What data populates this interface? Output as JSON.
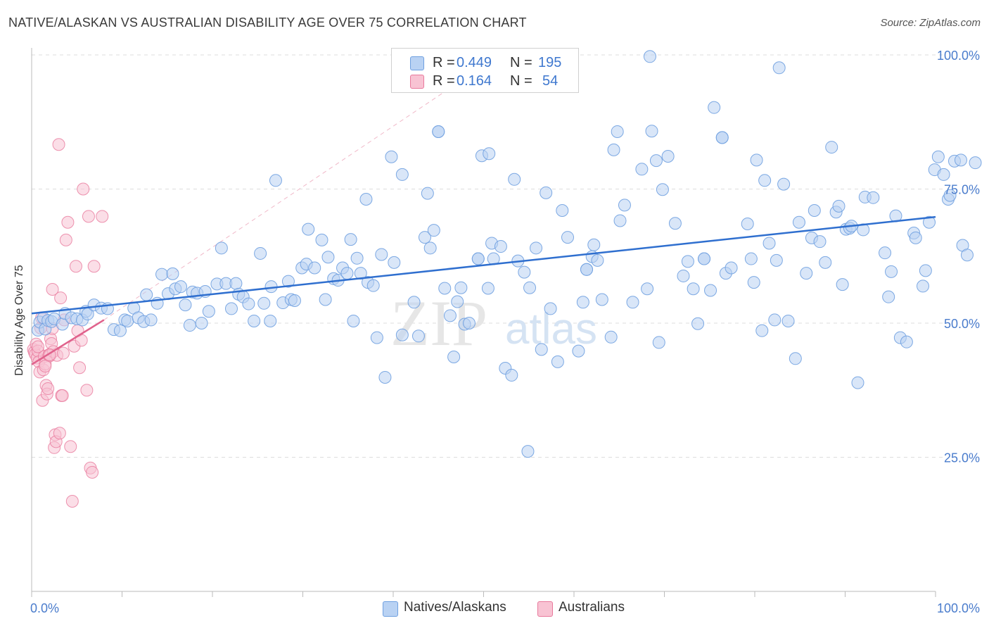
{
  "header": {
    "title": "NATIVE/ALASKAN VS AUSTRALIAN DISABILITY AGE OVER 75 CORRELATION CHART",
    "source": "Source: ZipAtlas.com"
  },
  "legend_box": {
    "rows": [
      {
        "r_label": "R =",
        "r_value": "0.449",
        "n_label": "N =",
        "n_value": "195"
      },
      {
        "r_label": "R =",
        "r_value": "0.164",
        "n_label": "N =",
        "n_value": "54"
      }
    ]
  },
  "bottom_legend": {
    "items": [
      "Natives/Alaskans",
      "Australians"
    ]
  },
  "watermark": {
    "zip": "ZIP",
    "atlas": "atlas"
  },
  "colors": {
    "blue": "#6fa0e0",
    "blue_fill": "#b9d2f3",
    "blue_line": "#2f6fcf",
    "pink": "#e8799c",
    "pink_fill": "#f8c3d3",
    "pink_line": "#e0628c",
    "tick_text": "#4a7ccc",
    "grid": "#dddddd"
  },
  "chart_data": {
    "type": "scatter",
    "xlabel": "",
    "ylabel": "Disability Age Over 75",
    "xlim": [
      0,
      100
    ],
    "ylim": [
      0,
      100
    ],
    "x_ticks": [
      "0.0%",
      "100.0%"
    ],
    "y_ticks": [
      "25.0%",
      "50.0%",
      "75.0%",
      "100.0%"
    ],
    "y_tick_values": [
      25,
      50,
      75,
      100
    ],
    "grid": true,
    "legend_placement": "bottom",
    "series": [
      {
        "name": "Natives/Alaskans",
        "color": "#6fa0e0",
        "r": 0.449,
        "n": 195,
        "trend": {
          "x": [
            0,
            100
          ],
          "y": [
            51.8,
            69.8
          ]
        },
        "points": [
          [
            0.7,
            48.7
          ],
          [
            0.9,
            50.2
          ],
          [
            1.3,
            51.0
          ],
          [
            1.5,
            48.9
          ],
          [
            1.8,
            50.5
          ],
          [
            2.2,
            50.3
          ],
          [
            2.5,
            50.8
          ],
          [
            3.4,
            49.8
          ],
          [
            3.7,
            51.8
          ],
          [
            4.4,
            51.0
          ],
          [
            5.0,
            50.8
          ],
          [
            5.6,
            50.6
          ],
          [
            6.0,
            52.2
          ],
          [
            6.2,
            51.7
          ],
          [
            6.9,
            53.4
          ],
          [
            7.7,
            52.8
          ],
          [
            8.4,
            52.7
          ],
          [
            9.1,
            48.8
          ],
          [
            9.8,
            48.6
          ],
          [
            10.3,
            50.6
          ],
          [
            10.6,
            50.4
          ],
          [
            11.3,
            52.8
          ],
          [
            11.8,
            51.0
          ],
          [
            12.4,
            50.3
          ],
          [
            12.7,
            55.3
          ],
          [
            13.2,
            50.6
          ],
          [
            13.9,
            53.7
          ],
          [
            14.4,
            59.1
          ],
          [
            15.1,
            55.5
          ],
          [
            15.6,
            59.2
          ],
          [
            15.9,
            56.4
          ],
          [
            16.5,
            56.8
          ],
          [
            17.0,
            53.4
          ],
          [
            17.5,
            49.6
          ],
          [
            17.8,
            55.8
          ],
          [
            18.3,
            55.6
          ],
          [
            18.8,
            50.0
          ],
          [
            19.2,
            55.9
          ],
          [
            19.6,
            52.2
          ],
          [
            20.5,
            57.3
          ],
          [
            21.0,
            64.0
          ],
          [
            21.5,
            57.4
          ],
          [
            22.1,
            52.7
          ],
          [
            22.6,
            57.4
          ],
          [
            22.9,
            55.4
          ],
          [
            23.4,
            54.9
          ],
          [
            24.0,
            53.6
          ],
          [
            24.6,
            50.4
          ],
          [
            25.3,
            63.0
          ],
          [
            25.7,
            53.7
          ],
          [
            26.4,
            50.4
          ],
          [
            26.5,
            56.8
          ],
          [
            27.0,
            76.6
          ],
          [
            27.8,
            53.8
          ],
          [
            28.4,
            57.8
          ],
          [
            28.7,
            54.4
          ],
          [
            29.1,
            54.2
          ],
          [
            29.9,
            60.3
          ],
          [
            30.4,
            61.0
          ],
          [
            30.6,
            67.5
          ],
          [
            31.3,
            60.3
          ],
          [
            32.1,
            65.5
          ],
          [
            32.5,
            54.4
          ],
          [
            32.8,
            62.3
          ],
          [
            33.4,
            58.3
          ],
          [
            33.9,
            58.0
          ],
          [
            34.4,
            60.3
          ],
          [
            34.9,
            59.3
          ],
          [
            35.3,
            65.6
          ],
          [
            35.6,
            50.4
          ],
          [
            36.0,
            62.1
          ],
          [
            36.4,
            59.3
          ],
          [
            37.0,
            73.1
          ],
          [
            37.2,
            57.6
          ],
          [
            37.8,
            57.0
          ],
          [
            38.2,
            47.3
          ],
          [
            38.7,
            62.8
          ],
          [
            39.1,
            39.9
          ],
          [
            39.8,
            81.0
          ],
          [
            40.1,
            61.3
          ],
          [
            41.0,
            77.7
          ],
          [
            41.0,
            47.8
          ],
          [
            42.3,
            53.9
          ],
          [
            42.8,
            47.6
          ],
          [
            43.5,
            66.0
          ],
          [
            43.8,
            74.2
          ],
          [
            44.1,
            64.0
          ],
          [
            44.5,
            67.3
          ],
          [
            45.0,
            85.7
          ],
          [
            45.7,
            56.5
          ],
          [
            46.3,
            51.4
          ],
          [
            46.7,
            43.7
          ],
          [
            47.1,
            54.0
          ],
          [
            47.5,
            56.6
          ],
          [
            47.9,
            49.8
          ],
          [
            48.4,
            50.0
          ],
          [
            49.4,
            62.0
          ],
          [
            49.8,
            81.2
          ],
          [
            50.5,
            56.5
          ],
          [
            50.6,
            81.6
          ],
          [
            50.9,
            64.9
          ],
          [
            51.1,
            62.0
          ],
          [
            51.9,
            64.3
          ],
          [
            52.4,
            41.6
          ],
          [
            53.1,
            40.3
          ],
          [
            53.4,
            76.8
          ],
          [
            53.8,
            61.6
          ],
          [
            54.5,
            59.5
          ],
          [
            55.1,
            56.6
          ],
          [
            55.8,
            64.0
          ],
          [
            56.4,
            45.1
          ],
          [
            56.9,
            74.3
          ],
          [
            57.4,
            52.7
          ],
          [
            58.2,
            42.8
          ],
          [
            58.7,
            71.0
          ],
          [
            59.3,
            66.0
          ],
          [
            60.5,
            44.8
          ],
          [
            61.0,
            53.9
          ],
          [
            61.4,
            60.0
          ],
          [
            62.0,
            62.4
          ],
          [
            62.2,
            64.6
          ],
          [
            62.6,
            61.7
          ],
          [
            63.1,
            54.4
          ],
          [
            64.1,
            47.4
          ],
          [
            64.4,
            82.3
          ],
          [
            64.8,
            85.7
          ],
          [
            65.1,
            69.1
          ],
          [
            65.6,
            72.0
          ],
          [
            66.5,
            53.9
          ],
          [
            67.5,
            78.7
          ],
          [
            68.1,
            56.4
          ],
          [
            68.6,
            85.8
          ],
          [
            69.1,
            80.3
          ],
          [
            69.4,
            46.4
          ],
          [
            69.8,
            74.9
          ],
          [
            70.4,
            81.1
          ],
          [
            71.2,
            68.6
          ],
          [
            72.1,
            58.8
          ],
          [
            72.6,
            61.5
          ],
          [
            73.2,
            56.4
          ],
          [
            73.7,
            49.9
          ],
          [
            74.4,
            62.0
          ],
          [
            75.1,
            56.1
          ],
          [
            75.5,
            90.2
          ],
          [
            76.4,
            84.6
          ],
          [
            76.8,
            59.3
          ],
          [
            77.4,
            60.3
          ],
          [
            79.2,
            68.5
          ],
          [
            79.6,
            62.0
          ],
          [
            79.9,
            57.6
          ],
          [
            80.2,
            80.4
          ],
          [
            80.8,
            48.6
          ],
          [
            81.1,
            76.6
          ],
          [
            81.6,
            64.9
          ],
          [
            82.2,
            50.6
          ],
          [
            82.4,
            61.7
          ],
          [
            83.2,
            75.9
          ],
          [
            83.7,
            50.4
          ],
          [
            84.5,
            43.4
          ],
          [
            84.9,
            68.8
          ],
          [
            85.7,
            59.3
          ],
          [
            86.3,
            65.9
          ],
          [
            86.6,
            71.0
          ],
          [
            87.2,
            65.2
          ],
          [
            87.8,
            61.3
          ],
          [
            88.5,
            82.8
          ],
          [
            89.0,
            70.7
          ],
          [
            89.3,
            71.8
          ],
          [
            89.7,
            57.2
          ],
          [
            90.1,
            67.5
          ],
          [
            90.5,
            67.7
          ],
          [
            90.7,
            68.1
          ],
          [
            91.4,
            38.9
          ],
          [
            92.0,
            67.4
          ],
          [
            92.2,
            73.5
          ],
          [
            93.1,
            73.4
          ],
          [
            94.4,
            63.1
          ],
          [
            94.8,
            54.9
          ],
          [
            95.1,
            59.6
          ],
          [
            95.6,
            70.0
          ],
          [
            96.1,
            47.3
          ],
          [
            96.8,
            46.5
          ],
          [
            97.6,
            66.8
          ],
          [
            97.8,
            65.9
          ],
          [
            98.6,
            56.9
          ],
          [
            98.9,
            59.8
          ],
          [
            99.3,
            68.8
          ],
          [
            99.9,
            78.6
          ],
          [
            100.3,
            81.0
          ],
          [
            100.9,
            77.7
          ],
          [
            101.4,
            73.1
          ],
          [
            101.6,
            73.8
          ],
          [
            102.1,
            80.2
          ],
          [
            102.8,
            80.4
          ],
          [
            103.0,
            64.5
          ],
          [
            103.5,
            62.7
          ],
          [
            104.4,
            79.9
          ],
          [
            54.9,
            26.1
          ],
          [
            68.4,
            99.7
          ],
          [
            82.7,
            97.6
          ],
          [
            45.0,
            85.7
          ],
          [
            76.4,
            84.6
          ],
          [
            49.4,
            62.0
          ],
          [
            61.4,
            60.0
          ],
          [
            74.4,
            62.0
          ]
        ]
      },
      {
        "name": "Australians",
        "color": "#e8799c",
        "r": 0.164,
        "n": 54,
        "trend": {
          "x": [
            0,
            8
          ],
          "y": [
            42.3,
            50.6
          ]
        },
        "points": [
          [
            0.2,
            45.1
          ],
          [
            0.3,
            44.6
          ],
          [
            0.4,
            44.2
          ],
          [
            0.5,
            46.1
          ],
          [
            0.6,
            43.5
          ],
          [
            0.7,
            44.8
          ],
          [
            0.8,
            42.8
          ],
          [
            0.9,
            40.9
          ],
          [
            1.0,
            49.1
          ],
          [
            1.1,
            51.0
          ],
          [
            1.2,
            35.6
          ],
          [
            1.3,
            41.3
          ],
          [
            1.4,
            43.8
          ],
          [
            1.5,
            42.4
          ],
          [
            1.6,
            38.4
          ],
          [
            1.7,
            36.8
          ],
          [
            1.8,
            37.8
          ],
          [
            1.9,
            44.1
          ],
          [
            2.0,
            43.9
          ],
          [
            2.1,
            47.1
          ],
          [
            2.2,
            46.2
          ],
          [
            2.3,
            49.0
          ],
          [
            2.4,
            44.7
          ],
          [
            2.5,
            26.8
          ],
          [
            2.6,
            29.2
          ],
          [
            2.7,
            27.9
          ],
          [
            2.8,
            44.0
          ],
          [
            3.0,
            83.3
          ],
          [
            3.1,
            29.5
          ],
          [
            3.2,
            54.7
          ],
          [
            3.3,
            36.5
          ],
          [
            3.4,
            36.5
          ],
          [
            3.6,
            50.6
          ],
          [
            3.8,
            65.5
          ],
          [
            4.0,
            68.8
          ],
          [
            4.3,
            27.0
          ],
          [
            4.5,
            16.8
          ],
          [
            4.7,
            45.7
          ],
          [
            4.9,
            60.6
          ],
          [
            5.1,
            48.6
          ],
          [
            5.3,
            41.7
          ],
          [
            5.5,
            46.8
          ],
          [
            5.7,
            75.0
          ],
          [
            6.1,
            37.5
          ],
          [
            6.3,
            69.9
          ],
          [
            6.5,
            23.0
          ],
          [
            6.7,
            22.2
          ],
          [
            6.9,
            60.6
          ],
          [
            7.8,
            69.9
          ],
          [
            2.3,
            56.3
          ],
          [
            0.7,
            45.6
          ],
          [
            2.0,
            44.1
          ],
          [
            1.5,
            42.0
          ],
          [
            3.5,
            44.4
          ]
        ]
      }
    ]
  }
}
